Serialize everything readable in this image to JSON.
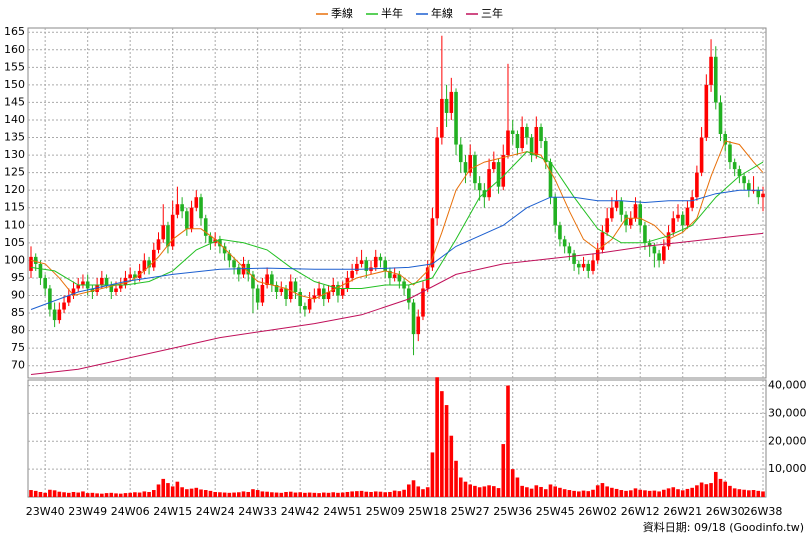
{
  "chart_data": {
    "type": "candlestick",
    "legend": {
      "position": "top"
    },
    "source": "資料日期: 09/18 (Goodinfo.tw)",
    "up_color": "#ff0000",
    "down_color": "#22b022",
    "volume_color": "#ff0000",
    "ylim": [
      66.5,
      166.2
    ],
    "yticks": [
      70,
      75,
      80,
      85,
      90,
      95,
      100,
      105,
      110,
      115,
      120,
      125,
      130,
      135,
      140,
      145,
      150,
      155,
      160,
      165
    ],
    "volume_ylim": [
      0,
      42000
    ],
    "volume_ticks": [
      {
        "value": 10000,
        "label": "10,000"
      },
      {
        "value": 20000,
        "label": "20,000"
      },
      {
        "value": 30000,
        "label": "30,000"
      },
      {
        "value": 40000,
        "label": "40,000"
      }
    ],
    "grid": true,
    "categories": [
      null,
      null,
      null,
      "23W40",
      null,
      null,
      null,
      null,
      null,
      null,
      null,
      null,
      "23W49",
      null,
      null,
      null,
      null,
      null,
      null,
      null,
      null,
      "24W06",
      null,
      null,
      null,
      null,
      null,
      null,
      null,
      null,
      "24W15",
      null,
      null,
      null,
      null,
      null,
      null,
      null,
      null,
      "24W24",
      null,
      null,
      null,
      null,
      null,
      null,
      null,
      null,
      "24W33",
      null,
      null,
      null,
      null,
      null,
      null,
      null,
      null,
      "24W42",
      null,
      null,
      null,
      null,
      null,
      null,
      null,
      null,
      "24W51",
      null,
      null,
      null,
      null,
      null,
      null,
      null,
      null,
      "25W09",
      null,
      null,
      null,
      null,
      null,
      null,
      null,
      null,
      "25W18",
      null,
      null,
      null,
      null,
      null,
      null,
      null,
      null,
      "25W27",
      null,
      null,
      null,
      null,
      null,
      null,
      null,
      null,
      "25W36",
      null,
      null,
      null,
      null,
      null,
      null,
      null,
      null,
      "25W45",
      null,
      null,
      null,
      null,
      null,
      null,
      null,
      null,
      "26W02",
      null,
      null,
      null,
      null,
      null,
      null,
      null,
      null,
      "26W12",
      null,
      null,
      null,
      null,
      null,
      null,
      null,
      null,
      "26W21",
      null,
      null,
      null,
      null,
      null,
      null,
      null,
      null,
      "26W30",
      null,
      null,
      null,
      null,
      null,
      null,
      null,
      "26W38"
    ],
    "ohlc": [
      [
        97,
        104,
        95,
        101
      ],
      [
        101,
        102,
        97,
        99
      ],
      [
        99,
        100,
        93,
        95
      ],
      [
        95,
        96,
        90,
        92
      ],
      [
        92,
        93,
        84,
        86
      ],
      [
        86,
        88,
        81,
        83
      ],
      [
        83,
        88,
        82,
        86
      ],
      [
        86,
        90,
        85,
        88
      ],
      [
        88,
        92,
        87,
        90
      ],
      [
        90,
        94,
        89,
        92
      ],
      [
        92,
        95,
        91,
        93
      ],
      [
        93,
        96,
        92,
        94
      ],
      [
        94,
        96,
        90,
        92
      ],
      [
        92,
        93,
        89,
        91
      ],
      [
        91,
        95,
        90,
        93
      ],
      [
        93,
        97,
        92,
        95
      ],
      [
        95,
        96,
        92,
        93
      ],
      [
        93,
        94,
        89,
        91
      ],
      [
        91,
        94,
        90,
        92
      ],
      [
        92,
        95,
        91,
        93
      ],
      [
        93,
        97,
        92,
        95
      ],
      [
        95,
        98,
        94,
        96
      ],
      [
        96,
        97,
        93,
        95
      ],
      [
        95,
        99,
        94,
        97
      ],
      [
        97,
        102,
        96,
        100
      ],
      [
        100,
        101,
        96,
        98
      ],
      [
        98,
        105,
        97,
        103
      ],
      [
        103,
        108,
        102,
        106
      ],
      [
        106,
        116,
        105,
        110
      ],
      [
        110,
        111,
        102,
        104
      ],
      [
        104,
        117,
        103,
        113
      ],
      [
        113,
        121,
        112,
        116
      ],
      [
        116,
        118,
        112,
        114
      ],
      [
        114,
        115,
        107,
        109
      ],
      [
        109,
        117,
        108,
        115
      ],
      [
        115,
        120,
        114,
        118
      ],
      [
        118,
        119,
        110,
        112
      ],
      [
        112,
        113,
        105,
        107
      ],
      [
        107,
        108,
        103,
        105
      ],
      [
        105,
        108,
        104,
        106
      ],
      [
        106,
        107,
        102,
        104
      ],
      [
        104,
        105,
        100,
        102
      ],
      [
        102,
        103,
        98,
        100
      ],
      [
        100,
        101,
        96,
        98
      ],
      [
        98,
        99,
        94,
        96
      ],
      [
        96,
        101,
        95,
        99
      ],
      [
        99,
        100,
        94,
        96
      ],
      [
        96,
        97,
        85,
        92
      ],
      [
        92,
        93,
        86,
        88
      ],
      [
        88,
        95,
        87,
        93
      ],
      [
        93,
        98,
        92,
        96
      ],
      [
        96,
        97,
        91,
        93
      ],
      [
        93,
        94,
        89,
        91
      ],
      [
        91,
        94,
        90,
        92
      ],
      [
        92,
        93,
        87,
        89
      ],
      [
        89,
        96,
        88,
        94
      ],
      [
        94,
        95,
        89,
        91
      ],
      [
        91,
        92,
        85,
        87
      ],
      [
        87,
        88,
        84,
        86
      ],
      [
        86,
        91,
        85,
        89
      ],
      [
        89,
        92,
        88,
        90
      ],
      [
        90,
        94,
        89,
        92
      ],
      [
        92,
        93,
        87,
        89
      ],
      [
        89,
        93,
        88,
        91
      ],
      [
        91,
        95,
        90,
        93
      ],
      [
        93,
        94,
        88,
        90
      ],
      [
        90,
        94,
        89,
        92
      ],
      [
        92,
        97,
        91,
        95
      ],
      [
        95,
        99,
        94,
        97
      ],
      [
        97,
        101,
        96,
        99
      ],
      [
        99,
        103,
        98,
        100
      ],
      [
        100,
        101,
        95,
        97
      ],
      [
        97,
        100,
        96,
        98
      ],
      [
        98,
        103,
        97,
        101
      ],
      [
        101,
        102,
        98,
        100
      ],
      [
        100,
        101,
        95,
        97
      ],
      [
        97,
        98,
        93,
        95
      ],
      [
        95,
        98,
        94,
        96
      ],
      [
        96,
        97,
        92,
        94
      ],
      [
        94,
        95,
        90,
        92
      ],
      [
        92,
        93,
        86,
        88
      ],
      [
        88,
        89,
        73,
        79
      ],
      [
        79,
        86,
        77,
        84
      ],
      [
        84,
        94,
        83,
        92
      ],
      [
        92,
        100,
        91,
        98
      ],
      [
        98,
        115,
        97,
        112
      ],
      [
        112,
        138,
        110,
        135
      ],
      [
        135,
        164,
        133,
        146
      ],
      [
        146,
        150,
        138,
        142
      ],
      [
        142,
        152,
        140,
        148
      ],
      [
        148,
        149,
        130,
        133
      ],
      [
        133,
        135,
        125,
        128
      ],
      [
        128,
        130,
        122,
        125
      ],
      [
        125,
        133,
        124,
        130
      ],
      [
        130,
        131,
        120,
        122
      ],
      [
        122,
        124,
        117,
        120
      ],
      [
        120,
        122,
        115,
        118
      ],
      [
        118,
        129,
        117,
        126
      ],
      [
        126,
        131,
        125,
        128
      ],
      [
        128,
        129,
        119,
        121
      ],
      [
        121,
        133,
        120,
        130
      ],
      [
        130,
        156,
        129,
        137
      ],
      [
        137,
        140,
        133,
        136
      ],
      [
        136,
        137,
        130,
        132
      ],
      [
        132,
        141,
        131,
        138
      ],
      [
        138,
        139,
        133,
        135
      ],
      [
        135,
        136,
        128,
        130
      ],
      [
        130,
        141,
        129,
        138
      ],
      [
        138,
        139,
        132,
        134
      ],
      [
        134,
        135,
        126,
        128
      ],
      [
        128,
        129,
        116,
        118
      ],
      [
        118,
        119,
        108,
        110
      ],
      [
        110,
        111,
        104,
        106
      ],
      [
        106,
        107,
        102,
        104
      ],
      [
        104,
        105,
        100,
        102
      ],
      [
        102,
        103,
        97,
        99
      ],
      [
        99,
        100,
        96,
        98
      ],
      [
        98,
        101,
        97,
        99
      ],
      [
        99,
        100,
        95,
        97
      ],
      [
        97,
        102,
        96,
        100
      ],
      [
        100,
        105,
        99,
        103
      ],
      [
        103,
        110,
        102,
        108
      ],
      [
        108,
        115,
        107,
        112
      ],
      [
        112,
        118,
        111,
        115
      ],
      [
        115,
        120,
        114,
        117
      ],
      [
        117,
        118,
        111,
        113
      ],
      [
        113,
        114,
        108,
        110
      ],
      [
        110,
        114,
        109,
        112
      ],
      [
        112,
        118,
        111,
        116
      ],
      [
        116,
        117,
        108,
        110
      ],
      [
        110,
        111,
        103,
        105
      ],
      [
        105,
        106,
        101,
        104
      ],
      [
        104,
        105,
        98,
        102
      ],
      [
        102,
        103,
        98,
        100
      ],
      [
        100,
        106,
        99,
        104
      ],
      [
        104,
        110,
        103,
        108
      ],
      [
        108,
        114,
        107,
        112
      ],
      [
        112,
        116,
        111,
        113
      ],
      [
        113,
        114,
        108,
        110
      ],
      [
        110,
        117,
        109,
        115
      ],
      [
        115,
        120,
        114,
        118
      ],
      [
        118,
        127,
        117,
        125
      ],
      [
        125,
        138,
        124,
        135
      ],
      [
        135,
        153,
        134,
        150
      ],
      [
        150,
        163,
        148,
        158
      ],
      [
        158,
        161,
        143,
        145
      ],
      [
        145,
        147,
        134,
        136
      ],
      [
        136,
        137,
        131,
        133
      ],
      [
        133,
        134,
        126,
        128
      ],
      [
        128,
        129,
        124,
        126
      ],
      [
        126,
        127,
        122,
        124
      ],
      [
        124,
        125,
        120,
        122
      ],
      [
        122,
        123,
        118,
        120
      ],
      [
        120,
        124,
        119,
        120
      ],
      [
        120,
        121,
        116,
        118
      ],
      [
        118,
        121,
        114,
        119
      ]
    ],
    "volume": [
      2500,
      2200,
      1800,
      1500,
      2600,
      2400,
      1900,
      1700,
      1500,
      1800,
      1600,
      2000,
      1400,
      1500,
      1300,
      1200,
      1400,
      1500,
      1300,
      1200,
      1400,
      1500,
      1700,
      1600,
      2000,
      1800,
      2500,
      4500,
      6500,
      5000,
      3800,
      5500,
      3500,
      2800,
      3000,
      3300,
      2700,
      2500,
      2200,
      1800,
      1700,
      1600,
      1500,
      1600,
      1700,
      2000,
      1800,
      2800,
      2500,
      2000,
      1900,
      1700,
      1600,
      1500,
      1800,
      1900,
      1600,
      1700,
      1500,
      1600,
      1500,
      1400,
      1600,
      1500,
      1700,
      1500,
      1600,
      1800,
      2000,
      2100,
      2200,
      1900,
      1800,
      2000,
      1900,
      1700,
      1800,
      2300,
      2100,
      2600,
      4500,
      6000,
      3800,
      2800,
      3500,
      16000,
      43000,
      38000,
      33000,
      22000,
      13000,
      7000,
      5500,
      4500,
      4000,
      3500,
      3800,
      4200,
      3900,
      3200,
      19000,
      40000,
      10000,
      7000,
      4000,
      3500,
      3000,
      4200,
      3600,
      2800,
      4500,
      3800,
      3300,
      2800,
      2500,
      2200,
      2000,
      2300,
      2100,
      2600,
      4200,
      5000,
      3800,
      3300,
      2900,
      2500,
      2200,
      2400,
      3100,
      2600,
      2400,
      2200,
      2300,
      2000,
      2600,
      3100,
      3500,
      2800,
      2400,
      2900,
      3300,
      4200,
      5200,
      4600,
      5000,
      9000,
      6500,
      5500,
      4000,
      3100,
      2800,
      2600,
      2400,
      2500,
      2200,
      2000
    ],
    "series": [
      {
        "name": "季線",
        "color": "#e8700a",
        "x": [
          0,
          3,
          6,
          9,
          12,
          15,
          18,
          21,
          24,
          27,
          30,
          33,
          36,
          39,
          42,
          45,
          48,
          51,
          54,
          57,
          60,
          63,
          66,
          69,
          72,
          75,
          78,
          81,
          84,
          87,
          90,
          93,
          96,
          99,
          102,
          105,
          108,
          111,
          114,
          117,
          120,
          123,
          126,
          129,
          132,
          135,
          138,
          141,
          144,
          147,
          150,
          153,
          155
        ],
        "values": [
          100,
          99,
          95,
          90,
          91,
          92,
          93,
          94,
          97,
          101,
          106,
          109,
          109,
          106,
          102,
          98,
          94,
          93,
          92,
          90,
          89,
          91,
          93,
          95,
          96,
          97,
          96,
          93,
          97,
          108,
          120,
          126,
          128,
          129,
          130,
          131,
          130,
          123,
          114,
          106,
          103,
          106,
          112,
          112,
          110,
          106,
          108,
          112,
          124,
          134,
          133,
          128,
          125
        ]
      },
      {
        "name": "半年",
        "color": "#22c022",
        "x": [
          0,
          5,
          10,
          15,
          20,
          25,
          30,
          35,
          40,
          45,
          50,
          55,
          60,
          65,
          70,
          75,
          80,
          85,
          90,
          95,
          100,
          105,
          110,
          115,
          120,
          125,
          130,
          135,
          140,
          145,
          150,
          155
        ],
        "values": [
          98,
          97,
          93,
          93,
          93,
          94,
          97,
          103,
          106,
          105,
          103,
          98,
          94,
          92,
          92,
          93,
          93,
          95,
          106,
          118,
          124,
          131,
          128,
          118,
          109,
          105,
          105,
          107,
          110,
          118,
          124,
          128
        ]
      },
      {
        "name": "年線",
        "color": "#1c5fd0",
        "x": [
          0,
          10,
          20,
          30,
          40,
          50,
          60,
          70,
          80,
          85,
          90,
          100,
          105,
          110,
          115,
          120,
          125,
          130,
          135,
          140,
          145,
          150,
          155
        ],
        "values": [
          86,
          91,
          94,
          96,
          97.5,
          97.8,
          97.5,
          97.5,
          98,
          99,
          104,
          110,
          115,
          118,
          118,
          117,
          117,
          116.5,
          117,
          117,
          119,
          120,
          120
        ]
      },
      {
        "name": "三年",
        "color": "#c0105a",
        "x": [
          0,
          10,
          20,
          30,
          40,
          50,
          60,
          70,
          80,
          90,
          100,
          110,
          120,
          130,
          140,
          150,
          155
        ],
        "values": [
          67.5,
          69,
          72,
          75,
          78,
          80,
          82,
          84.5,
          89,
          96,
          99,
          100.5,
          102,
          104,
          105.5,
          107,
          107.7
        ]
      }
    ]
  }
}
